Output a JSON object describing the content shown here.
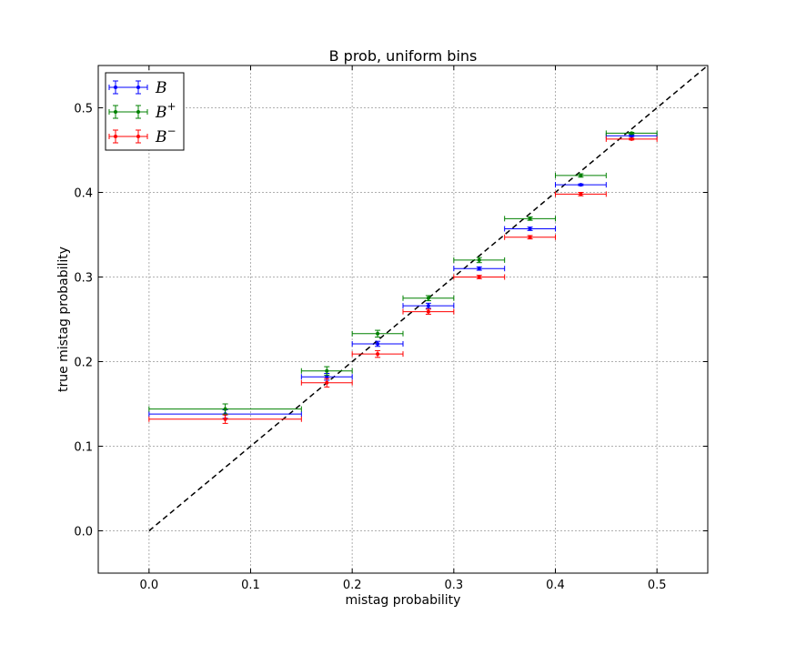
{
  "chart_data": {
    "type": "scatter",
    "title": "B prob, uniform bins",
    "xlabel": "mistag probability",
    "ylabel": "true mistag probability",
    "xlim": [
      -0.05,
      0.55
    ],
    "ylim": [
      -0.05,
      0.55
    ],
    "xticks": [
      0.0,
      0.1,
      0.2,
      0.3,
      0.4,
      0.5
    ],
    "yticks": [
      0.0,
      0.1,
      0.2,
      0.3,
      0.4,
      0.5
    ],
    "xtick_labels": [
      "0.0",
      "0.1",
      "0.2",
      "0.3",
      "0.4",
      "0.5"
    ],
    "ytick_labels": [
      "0.0",
      "0.1",
      "0.2",
      "0.3",
      "0.4",
      "0.5"
    ],
    "grid": true,
    "legend_position": "top-left",
    "reference_line": {
      "x": [
        0.0,
        0.55
      ],
      "y": [
        0.0,
        0.55
      ],
      "style": "dashed",
      "color": "#000000"
    },
    "series": [
      {
        "name": "B",
        "sup": "",
        "color": "#0000ff",
        "points": [
          {
            "x": 0.075,
            "y": 0.138,
            "xerr": 0.075,
            "yerr": 0.005
          },
          {
            "x": 0.175,
            "y": 0.182,
            "xerr": 0.025,
            "yerr": 0.004
          },
          {
            "x": 0.225,
            "y": 0.221,
            "xerr": 0.025,
            "yerr": 0.003
          },
          {
            "x": 0.275,
            "y": 0.266,
            "xerr": 0.025,
            "yerr": 0.003
          },
          {
            "x": 0.325,
            "y": 0.31,
            "xerr": 0.025,
            "yerr": 0.002
          },
          {
            "x": 0.375,
            "y": 0.357,
            "xerr": 0.025,
            "yerr": 0.002
          },
          {
            "x": 0.425,
            "y": 0.409,
            "xerr": 0.025,
            "yerr": 0.001
          },
          {
            "x": 0.475,
            "y": 0.467,
            "xerr": 0.025,
            "yerr": 0.001
          }
        ]
      },
      {
        "name": "B",
        "sup": "+",
        "color": "#008000",
        "points": [
          {
            "x": 0.075,
            "y": 0.144,
            "xerr": 0.075,
            "yerr": 0.006
          },
          {
            "x": 0.175,
            "y": 0.189,
            "xerr": 0.025,
            "yerr": 0.005
          },
          {
            "x": 0.225,
            "y": 0.233,
            "xerr": 0.025,
            "yerr": 0.004
          },
          {
            "x": 0.275,
            "y": 0.275,
            "xerr": 0.025,
            "yerr": 0.003
          },
          {
            "x": 0.325,
            "y": 0.32,
            "xerr": 0.025,
            "yerr": 0.003
          },
          {
            "x": 0.375,
            "y": 0.369,
            "xerr": 0.025,
            "yerr": 0.002
          },
          {
            "x": 0.425,
            "y": 0.42,
            "xerr": 0.025,
            "yerr": 0.002
          },
          {
            "x": 0.475,
            "y": 0.47,
            "xerr": 0.025,
            "yerr": 0.001
          }
        ]
      },
      {
        "name": "B",
        "sup": "−",
        "color": "#ff0000",
        "points": [
          {
            "x": 0.075,
            "y": 0.132,
            "xerr": 0.075,
            "yerr": 0.005
          },
          {
            "x": 0.175,
            "y": 0.175,
            "xerr": 0.025,
            "yerr": 0.005
          },
          {
            "x": 0.225,
            "y": 0.209,
            "xerr": 0.025,
            "yerr": 0.004
          },
          {
            "x": 0.275,
            "y": 0.259,
            "xerr": 0.025,
            "yerr": 0.003
          },
          {
            "x": 0.325,
            "y": 0.3,
            "xerr": 0.025,
            "yerr": 0.002
          },
          {
            "x": 0.375,
            "y": 0.347,
            "xerr": 0.025,
            "yerr": 0.002
          },
          {
            "x": 0.425,
            "y": 0.398,
            "xerr": 0.025,
            "yerr": 0.002
          },
          {
            "x": 0.475,
            "y": 0.463,
            "xerr": 0.025,
            "yerr": 0.001
          }
        ]
      }
    ]
  }
}
